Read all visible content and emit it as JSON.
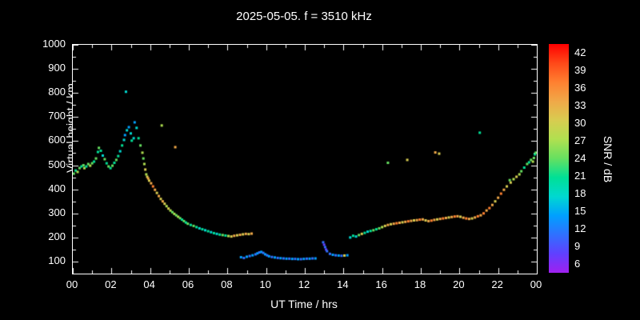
{
  "title": "2025-05-05. f = 3510 kHz",
  "colors": {
    "background": "#000000",
    "text": "#ffffff",
    "axis": "#ffffff"
  },
  "chart_data": {
    "type": "scatter",
    "title": "2025-05-05. f = 3510 kHz",
    "xlabel": "UT Time / hrs",
    "ylabel": "Virtual height / km",
    "colorbar_label": "SNR / dB",
    "xlim": [
      0,
      24
    ],
    "ylim": [
      50,
      1000
    ],
    "grid": false,
    "xticks": [
      0,
      2,
      4,
      6,
      8,
      10,
      12,
      14,
      16,
      18,
      20,
      22,
      24
    ],
    "xtick_labels": [
      "00",
      "02",
      "04",
      "06",
      "08",
      "10",
      "12",
      "14",
      "16",
      "18",
      "20",
      "22",
      "00"
    ],
    "yticks": [
      100,
      200,
      300,
      400,
      500,
      600,
      700,
      800,
      900,
      1000
    ],
    "colorbar": {
      "min": 6,
      "max": 42,
      "display_min": 4.5,
      "display_max": 43.5,
      "ticks": [
        6,
        9,
        12,
        15,
        18,
        21,
        24,
        27,
        30,
        33,
        36,
        39,
        42
      ],
      "colors": [
        "#a020f0",
        "#6040ff",
        "#3070ff",
        "#00a0ff",
        "#00d8d0",
        "#00e096",
        "#66e060",
        "#b0e050",
        "#d8cc50",
        "#f0a848",
        "#ff8030",
        "#ff4818",
        "#ff0000"
      ]
    },
    "points_format": [
      "ut_hours",
      "virtual_height_km",
      "snr_db"
    ],
    "points": [
      [
        0.05,
        465,
        24
      ],
      [
        0.15,
        478,
        21
      ],
      [
        0.25,
        472,
        27
      ],
      [
        0.35,
        488,
        24
      ],
      [
        0.45,
        495,
        21
      ],
      [
        0.55,
        500,
        24
      ],
      [
        0.6,
        488,
        27
      ],
      [
        0.7,
        495,
        21
      ],
      [
        0.8,
        505,
        24
      ],
      [
        0.9,
        498,
        27
      ],
      [
        1.0,
        508,
        24
      ],
      [
        1.1,
        515,
        21
      ],
      [
        1.2,
        528,
        24
      ],
      [
        1.3,
        555,
        21
      ],
      [
        1.35,
        572,
        24
      ],
      [
        1.45,
        560,
        21
      ],
      [
        1.55,
        540,
        18
      ],
      [
        1.65,
        525,
        24
      ],
      [
        1.75,
        508,
        21
      ],
      [
        1.85,
        495,
        24
      ],
      [
        1.95,
        488,
        21
      ],
      [
        2.05,
        498,
        24
      ],
      [
        2.15,
        510,
        21
      ],
      [
        2.25,
        522,
        24
      ],
      [
        2.35,
        538,
        21
      ],
      [
        2.45,
        558,
        18
      ],
      [
        2.55,
        582,
        21
      ],
      [
        2.65,
        605,
        18
      ],
      [
        2.7,
        625,
        15
      ],
      [
        2.75,
        805,
        18
      ],
      [
        2.8,
        645,
        18
      ],
      [
        2.9,
        658,
        15
      ],
      [
        3.0,
        632,
        18
      ],
      [
        3.05,
        602,
        21
      ],
      [
        3.15,
        612,
        18
      ],
      [
        3.2,
        678,
        15
      ],
      [
        3.3,
        655,
        18
      ],
      [
        3.4,
        612,
        21
      ],
      [
        3.5,
        582,
        24
      ],
      [
        3.6,
        552,
        27
      ],
      [
        3.65,
        528,
        24
      ],
      [
        3.7,
        505,
        27
      ],
      [
        3.75,
        482,
        30
      ],
      [
        3.8,
        462,
        27
      ],
      [
        3.85,
        452,
        30
      ],
      [
        3.9,
        445,
        33
      ],
      [
        3.95,
        436,
        30
      ],
      [
        4.05,
        425,
        33
      ],
      [
        4.15,
        412,
        36
      ],
      [
        4.25,
        398,
        33
      ],
      [
        4.35,
        385,
        30
      ],
      [
        4.45,
        372,
        33
      ],
      [
        4.55,
        360,
        30
      ],
      [
        4.6,
        665,
        27
      ],
      [
        4.65,
        350,
        33
      ],
      [
        4.75,
        340,
        30
      ],
      [
        4.85,
        330,
        27
      ],
      [
        4.95,
        320,
        30
      ],
      [
        5.05,
        312,
        27
      ],
      [
        5.15,
        305,
        24
      ],
      [
        5.25,
        298,
        27
      ],
      [
        5.3,
        575,
        33
      ],
      [
        5.35,
        292,
        24
      ],
      [
        5.45,
        286,
        27
      ],
      [
        5.55,
        280,
        24
      ],
      [
        5.65,
        274,
        21
      ],
      [
        5.75,
        268,
        24
      ],
      [
        5.85,
        262,
        21
      ],
      [
        5.95,
        257,
        24
      ],
      [
        6.1,
        252,
        21
      ],
      [
        6.25,
        248,
        24
      ],
      [
        6.4,
        243,
        21
      ],
      [
        6.55,
        238,
        18
      ],
      [
        6.7,
        234,
        21
      ],
      [
        6.85,
        230,
        18
      ],
      [
        7.0,
        226,
        21
      ],
      [
        7.15,
        222,
        18
      ],
      [
        7.3,
        218,
        21
      ],
      [
        7.45,
        215,
        18
      ],
      [
        7.6,
        212,
        21
      ],
      [
        7.75,
        210,
        24
      ],
      [
        7.9,
        208,
        21
      ],
      [
        8.05,
        206,
        27
      ],
      [
        8.2,
        204,
        30
      ],
      [
        8.35,
        207,
        33
      ],
      [
        8.5,
        209,
        30
      ],
      [
        8.65,
        211,
        33
      ],
      [
        8.8,
        213,
        30
      ],
      [
        8.95,
        215,
        33
      ],
      [
        9.1,
        214,
        30
      ],
      [
        9.25,
        216,
        33
      ],
      [
        8.7,
        118,
        15
      ],
      [
        8.85,
        115,
        12
      ],
      [
        9.0,
        120,
        15
      ],
      [
        9.15,
        123,
        12
      ],
      [
        9.3,
        126,
        15
      ],
      [
        9.45,
        130,
        12
      ],
      [
        9.55,
        134,
        15
      ],
      [
        9.65,
        138,
        12
      ],
      [
        9.75,
        140,
        15
      ],
      [
        9.85,
        136,
        12
      ],
      [
        9.95,
        130,
        15
      ],
      [
        10.05,
        126,
        12
      ],
      [
        10.15,
        122,
        15
      ],
      [
        10.3,
        119,
        12
      ],
      [
        10.45,
        117,
        15
      ],
      [
        10.6,
        115,
        12
      ],
      [
        10.75,
        114,
        15
      ],
      [
        10.9,
        113,
        12
      ],
      [
        11.05,
        112,
        15
      ],
      [
        11.2,
        112,
        12
      ],
      [
        11.35,
        111,
        15
      ],
      [
        11.5,
        111,
        12
      ],
      [
        11.65,
        110,
        15
      ],
      [
        11.8,
        110,
        12
      ],
      [
        11.95,
        111,
        15
      ],
      [
        12.1,
        112,
        12
      ],
      [
        12.25,
        112,
        15
      ],
      [
        12.4,
        113,
        12
      ],
      [
        12.55,
        113,
        15
      ],
      [
        12.95,
        180,
        12
      ],
      [
        13.0,
        170,
        9
      ],
      [
        13.05,
        160,
        12
      ],
      [
        13.1,
        150,
        9
      ],
      [
        13.15,
        143,
        12
      ],
      [
        13.3,
        132,
        12
      ],
      [
        13.45,
        128,
        15
      ],
      [
        13.6,
        126,
        12
      ],
      [
        13.75,
        125,
        15
      ],
      [
        13.9,
        124,
        12
      ],
      [
        14.05,
        125,
        30
      ],
      [
        14.2,
        126,
        15
      ],
      [
        14.35,
        200,
        18
      ],
      [
        14.5,
        207,
        21
      ],
      [
        14.65,
        204,
        18
      ],
      [
        14.8,
        210,
        24
      ],
      [
        14.95,
        215,
        30
      ],
      [
        15.1,
        219,
        21
      ],
      [
        15.25,
        224,
        18
      ],
      [
        15.4,
        227,
        21
      ],
      [
        15.55,
        230,
        24
      ],
      [
        15.7,
        234,
        21
      ],
      [
        15.85,
        238,
        24
      ],
      [
        16.0,
        243,
        27
      ],
      [
        16.15,
        248,
        30
      ],
      [
        16.3,
        510,
        24
      ],
      [
        16.3,
        252,
        33
      ],
      [
        16.45,
        255,
        30
      ],
      [
        16.6,
        257,
        33
      ],
      [
        16.75,
        259,
        36
      ],
      [
        16.9,
        261,
        33
      ],
      [
        17.05,
        263,
        30
      ],
      [
        17.2,
        265,
        33
      ],
      [
        17.3,
        522,
        30
      ],
      [
        17.35,
        267,
        36
      ],
      [
        17.5,
        269,
        33
      ],
      [
        17.65,
        271,
        30
      ],
      [
        17.8,
        272,
        33
      ],
      [
        17.95,
        274,
        36
      ],
      [
        18.1,
        275,
        33
      ],
      [
        18.25,
        271,
        30
      ],
      [
        18.4,
        268,
        33
      ],
      [
        18.55,
        270,
        36
      ],
      [
        18.7,
        273,
        33
      ],
      [
        18.75,
        553,
        33
      ],
      [
        18.85,
        275,
        30
      ],
      [
        18.95,
        548,
        30
      ],
      [
        19.0,
        277,
        33
      ],
      [
        19.15,
        279,
        36
      ],
      [
        19.3,
        281,
        33
      ],
      [
        19.45,
        283,
        30
      ],
      [
        19.6,
        285,
        33
      ],
      [
        19.75,
        287,
        36
      ],
      [
        19.9,
        288,
        33
      ],
      [
        20.05,
        286,
        30
      ],
      [
        20.2,
        282,
        33
      ],
      [
        20.35,
        279,
        36
      ],
      [
        20.5,
        277,
        33
      ],
      [
        20.65,
        279,
        30
      ],
      [
        20.8,
        283,
        33
      ],
      [
        20.95,
        288,
        36
      ],
      [
        21.05,
        635,
        21
      ],
      [
        21.1,
        292,
        33
      ],
      [
        21.25,
        300,
        36
      ],
      [
        21.4,
        312,
        33
      ],
      [
        21.55,
        322,
        36
      ],
      [
        21.7,
        335,
        33
      ],
      [
        21.85,
        350,
        30
      ],
      [
        22.0,
        365,
        33
      ],
      [
        22.15,
        382,
        36
      ],
      [
        22.3,
        398,
        33
      ],
      [
        22.45,
        412,
        30
      ],
      [
        22.6,
        438,
        24
      ],
      [
        22.65,
        428,
        30
      ],
      [
        22.8,
        442,
        27
      ],
      [
        22.95,
        452,
        30
      ],
      [
        23.1,
        462,
        27
      ],
      [
        23.2,
        475,
        24
      ],
      [
        23.35,
        490,
        21
      ],
      [
        23.5,
        505,
        24
      ],
      [
        23.6,
        512,
        21
      ],
      [
        23.7,
        522,
        24
      ],
      [
        23.8,
        515,
        27
      ],
      [
        23.85,
        530,
        24
      ],
      [
        23.9,
        545,
        21
      ],
      [
        23.95,
        552,
        24
      ]
    ]
  }
}
